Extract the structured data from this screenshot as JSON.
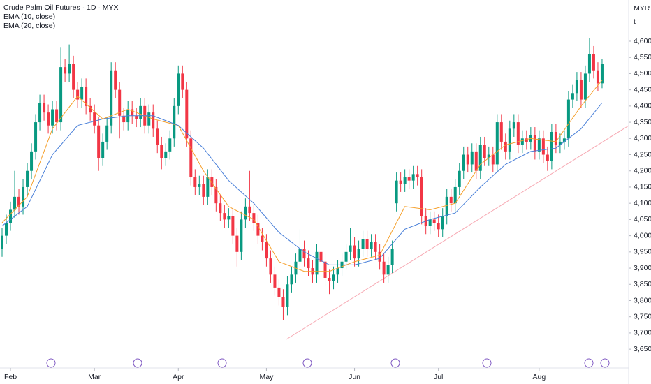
{
  "chart_data": {
    "type": "candlestick",
    "title": "Crude Palm Oil Futures · 1D · MYX",
    "currency": "MYR",
    "unit_marker": "t",
    "up_color": "#089981",
    "down_color": "#f23645",
    "open": [
      3960,
      4000,
      4040,
      4080,
      4120,
      4090,
      4150,
      4200,
      4260,
      4350,
      4410,
      4380,
      4340,
      4390,
      4350,
      4520,
      4500,
      4530,
      4450,
      4420,
      4460,
      4400,
      4380,
      4340,
      4240,
      4290,
      4340,
      4510,
      4450,
      4370,
      4350,
      4390,
      4370,
      4360,
      4400,
      4340,
      4380,
      4330,
      4280,
      4240,
      4260,
      4300,
      4400,
      4500,
      4450,
      4300,
      4180,
      4150,
      4160,
      4120,
      4180,
      4150,
      4100,
      4070,
      4050,
      4060,
      4000,
      3950,
      4050,
      4090,
      4070,
      4040,
      4000,
      3980,
      3930,
      3880,
      3840,
      3810,
      3780,
      3850,
      3880,
      3920,
      3960,
      3930,
      3900,
      3880,
      3950,
      3920,
      3870,
      3860,
      3880,
      3900,
      3920,
      3950,
      3970,
      3930,
      3960,
      3990,
      3960,
      3980,
      3950,
      3920,
      3880,
      3910,
      4100,
      4170,
      4160,
      4180,
      4170,
      4190,
      4180,
      4060,
      4030,
      4050,
      4040,
      4020,
      4060,
      4120,
      4100,
      4150,
      4200,
      4250,
      4220,
      4260,
      4200,
      4280,
      4240,
      4250,
      4220,
      4350,
      4290,
      4260,
      4330,
      4350,
      4280,
      4300,
      4290,
      4310,
      4260,
      4300,
      4250,
      4230,
      4320,
      4280,
      4290,
      4300,
      4420,
      4440,
      4480,
      4420,
      4500,
      4560,
      4510,
      4470
    ],
    "high": [
      4025,
      4065,
      4105,
      4200,
      4145,
      4175,
      4225,
      4285,
      4375,
      4435,
      4435,
      4405,
      4415,
      4415,
      4580,
      4545,
      4590,
      4555,
      4475,
      4485,
      4485,
      4425,
      4405,
      4365,
      4315,
      4365,
      4535,
      4535,
      4475,
      4395,
      4415,
      4415,
      4395,
      4425,
      4425,
      4405,
      4405,
      4355,
      4305,
      4285,
      4325,
      4425,
      4525,
      4525,
      4475,
      4325,
      4205,
      4185,
      4185,
      4205,
      4205,
      4175,
      4125,
      4095,
      4085,
      4085,
      4025,
      4075,
      4115,
      4200,
      4095,
      4065,
      4025,
      4005,
      3955,
      3905,
      3865,
      3835,
      3875,
      3905,
      3945,
      4020,
      3985,
      3955,
      3925,
      3975,
      3975,
      3945,
      3895,
      3905,
      3925,
      3945,
      3975,
      4025,
      3995,
      3985,
      4015,
      4015,
      4005,
      4005,
      3975,
      3945,
      3935,
      3985,
      4195,
      4195,
      4205,
      4205,
      4215,
      4215,
      4205,
      4085,
      4075,
      4075,
      4065,
      4085,
      4145,
      4145,
      4175,
      4225,
      4275,
      4275,
      4285,
      4285,
      4305,
      4305,
      4275,
      4275,
      4375,
      4375,
      4315,
      4355,
      4375,
      4375,
      4325,
      4325,
      4335,
      4335,
      4325,
      4325,
      4275,
      4345,
      4345,
      4315,
      4325,
      4445,
      4465,
      4505,
      4505,
      4525,
      4610,
      4585,
      4535,
      4545
    ],
    "low": [
      3935,
      3975,
      4015,
      4055,
      4065,
      4065,
      4125,
      4175,
      4235,
      4325,
      4355,
      4315,
      4315,
      4325,
      4325,
      4475,
      4475,
      4425,
      4395,
      4395,
      4375,
      4355,
      4315,
      4200,
      4215,
      4265,
      4315,
      4425,
      4300,
      4325,
      4325,
      4345,
      4335,
      4335,
      4315,
      4315,
      4305,
      4255,
      4205,
      4215,
      4235,
      4275,
      4375,
      4425,
      4275,
      4155,
      4125,
      4125,
      4095,
      4095,
      4125,
      4075,
      4045,
      4025,
      4025,
      3975,
      3905,
      3925,
      4025,
      4045,
      4015,
      3975,
      3955,
      3905,
      3855,
      3815,
      3785,
      3740,
      3755,
      3825,
      3855,
      3895,
      3905,
      3875,
      3855,
      3855,
      3895,
      3845,
      3820,
      3835,
      3855,
      3875,
      3895,
      3925,
      3905,
      3905,
      3935,
      3935,
      3935,
      3925,
      3895,
      3855,
      3855,
      3885,
      4075,
      4135,
      4135,
      4145,
      4145,
      4155,
      4035,
      4005,
      4005,
      4015,
      3995,
      3995,
      4035,
      4075,
      4075,
      4125,
      4175,
      4195,
      4195,
      4175,
      4175,
      4215,
      4215,
      4195,
      4195,
      4265,
      4235,
      4235,
      4305,
      4255,
      4255,
      4265,
      4265,
      4235,
      4235,
      4225,
      4200,
      4205,
      4255,
      4255,
      4265,
      4275,
      4395,
      4415,
      4395,
      4395,
      4475,
      4485,
      4445,
      4455
    ],
    "close": [
      4000,
      4040,
      4080,
      4120,
      4090,
      4150,
      4200,
      4260,
      4350,
      4410,
      4380,
      4340,
      4390,
      4350,
      4520,
      4500,
      4530,
      4450,
      4420,
      4460,
      4400,
      4380,
      4340,
      4240,
      4290,
      4340,
      4510,
      4450,
      4370,
      4350,
      4390,
      4370,
      4360,
      4400,
      4340,
      4380,
      4330,
      4280,
      4240,
      4260,
      4300,
      4400,
      4500,
      4450,
      4300,
      4180,
      4150,
      4160,
      4120,
      4180,
      4150,
      4100,
      4070,
      4050,
      4060,
      4000,
      3950,
      4050,
      4090,
      4070,
      4040,
      4000,
      3980,
      3930,
      3880,
      3840,
      3810,
      3780,
      3850,
      3880,
      3920,
      3960,
      3930,
      3900,
      3880,
      3950,
      3920,
      3870,
      3860,
      3880,
      3900,
      3920,
      3950,
      3970,
      3930,
      3960,
      3990,
      3960,
      3980,
      3950,
      3920,
      3880,
      3910,
      3960,
      4170,
      4160,
      4180,
      4170,
      4190,
      4180,
      4060,
      4030,
      4050,
      4040,
      4020,
      4060,
      4120,
      4100,
      4150,
      4200,
      4250,
      4220,
      4260,
      4200,
      4280,
      4240,
      4250,
      4220,
      4350,
      4290,
      4260,
      4330,
      4350,
      4280,
      4300,
      4290,
      4310,
      4260,
      4300,
      4250,
      4230,
      4320,
      4280,
      4290,
      4300,
      4420,
      4440,
      4480,
      4420,
      4500,
      4560,
      4510,
      4470,
      4530
    ],
    "series": [
      {
        "name": "EMA (10, close)",
        "color": "#f59f2a",
        "x": [
          0,
          6,
          12,
          18,
          24,
          30,
          36,
          42,
          48,
          54,
          60,
          66,
          72,
          78,
          84,
          90,
          96,
          102,
          108,
          114,
          120,
          126,
          132,
          138,
          143
        ],
        "values": [
          4040,
          4120,
          4330,
          4430,
          4360,
          4390,
          4360,
          4340,
          4200,
          4090,
          4050,
          3920,
          3890,
          3890,
          3920,
          3940,
          4090,
          4080,
          4100,
          4220,
          4280,
          4300,
          4290,
          4400,
          4480
        ]
      },
      {
        "name": "EMA (20, close)",
        "color": "#4a80d9",
        "x": [
          0,
          6,
          12,
          18,
          24,
          30,
          36,
          42,
          48,
          54,
          60,
          66,
          72,
          78,
          84,
          90,
          96,
          102,
          108,
          114,
          120,
          126,
          132,
          138,
          143
        ],
        "values": [
          4030,
          4090,
          4250,
          4340,
          4360,
          4370,
          4370,
          4340,
          4270,
          4170,
          4100,
          4010,
          3950,
          3910,
          3910,
          3930,
          4020,
          4050,
          4070,
          4150,
          4220,
          4260,
          4270,
          4330,
          4410
        ]
      }
    ],
    "xlim": [
      -0.5,
      149
    ],
    "xticks": [
      {
        "value": 2,
        "label": "Feb"
      },
      {
        "value": 22,
        "label": "Mar"
      },
      {
        "value": 42,
        "label": "Apr"
      },
      {
        "value": 63,
        "label": "May"
      },
      {
        "value": 84,
        "label": "Jun"
      },
      {
        "value": 104,
        "label": "Jul"
      },
      {
        "value": 128,
        "label": "Aug"
      }
    ],
    "ylim": [
      3618,
      4727
    ],
    "yticks": [
      {
        "value": 3650,
        "label": "3,650"
      },
      {
        "value": 3700,
        "label": "3,700"
      },
      {
        "value": 3750,
        "label": "3,750"
      },
      {
        "value": 3800,
        "label": "3,800"
      },
      {
        "value": 3850,
        "label": "3,850"
      },
      {
        "value": 3900,
        "label": "3,900"
      },
      {
        "value": 3950,
        "label": "3,950"
      },
      {
        "value": 4000,
        "label": "4,000"
      },
      {
        "value": 4050,
        "label": "4,050"
      },
      {
        "value": 4100,
        "label": "4,100"
      },
      {
        "value": 4150,
        "label": "4,150"
      },
      {
        "value": 4200,
        "label": "4,200"
      },
      {
        "value": 4250,
        "label": "4,250"
      },
      {
        "value": 4300,
        "label": "4,300"
      },
      {
        "value": 4350,
        "label": "4,350"
      },
      {
        "value": 4400,
        "label": "4,400"
      },
      {
        "value": 4450,
        "label": "4,450"
      },
      {
        "value": 4500,
        "label": "4,500"
      },
      {
        "value": 4550,
        "label": "4,550"
      },
      {
        "value": 4600,
        "label": "4,600"
      }
    ]
  }
}
